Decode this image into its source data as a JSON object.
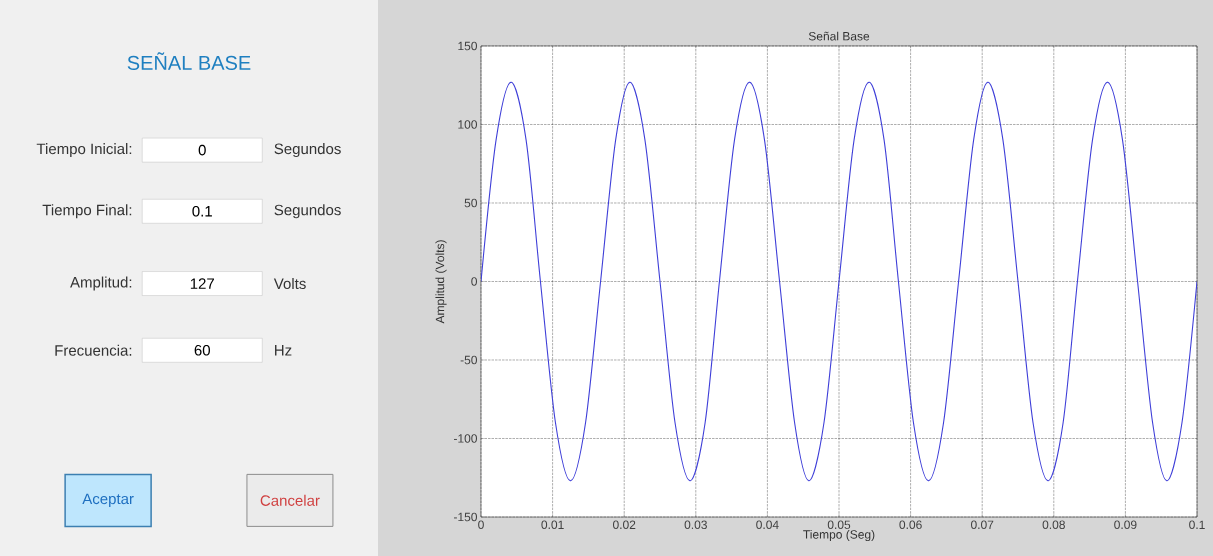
{
  "chart_data": [
    {
      "type": "other",
      "title": "SEÑAL BASE",
      "annotations": [
        "Tiempo Inicial:",
        "0",
        "Segundos",
        "Tiempo Final:",
        "0.1",
        "Segundos",
        "Amplitud:",
        "127",
        "Volts",
        "Frecuencia:",
        "60",
        "Hz",
        "Aceptar",
        "Cancelar"
      ]
    },
    {
      "type": "line",
      "title": "Señal Base",
      "xlabel": "Tiempo (Seg)",
      "ylabel": "Amplitud (Volts)",
      "color": "#3f3fd8",
      "x": [
        0,
        0.0021,
        0.0042,
        0.0063,
        0.0083,
        0.0104,
        0.0125,
        0.0146,
        0.0167,
        0.0188,
        0.0208,
        0.0229,
        0.025,
        0.0271,
        0.0292,
        0.0313,
        0.0333,
        0.0354,
        0.0375,
        0.0396,
        0.0417,
        0.0438,
        0.0458,
        0.0479,
        0.05,
        0.0521,
        0.0542,
        0.0563,
        0.0583,
        0.0604,
        0.0625,
        0.0646,
        0.0667,
        0.0688,
        0.0708,
        0.0729,
        0.075,
        0.0771,
        0.0792,
        0.0813,
        0.0833,
        0.0854,
        0.0875,
        0.0896,
        0.0917,
        0.0938,
        0.0958,
        0.0979,
        0.1
      ],
      "values": [
        0,
        90,
        127,
        90,
        0,
        -90,
        -127,
        -90,
        0,
        90,
        127,
        90,
        0,
        -90,
        -127,
        -90,
        0,
        90,
        127,
        90,
        0,
        -90,
        -127,
        -90,
        0,
        90,
        127,
        90,
        0,
        -90,
        -127,
        -90,
        0,
        90,
        127,
        90,
        0,
        -90,
        -127,
        -90,
        0,
        90,
        127,
        90,
        0,
        -90,
        -127,
        -90,
        0
      ],
      "xlim": [
        0,
        0.1
      ],
      "ylim": [
        -150,
        150
      ],
      "xticks": [
        0,
        0.01,
        0.02,
        0.03,
        0.04,
        0.05,
        0.06,
        0.07,
        0.08,
        0.09,
        0.1
      ],
      "yticks": [
        -150,
        -100,
        -50,
        0,
        50,
        100,
        150
      ],
      "grid": true
    }
  ]
}
